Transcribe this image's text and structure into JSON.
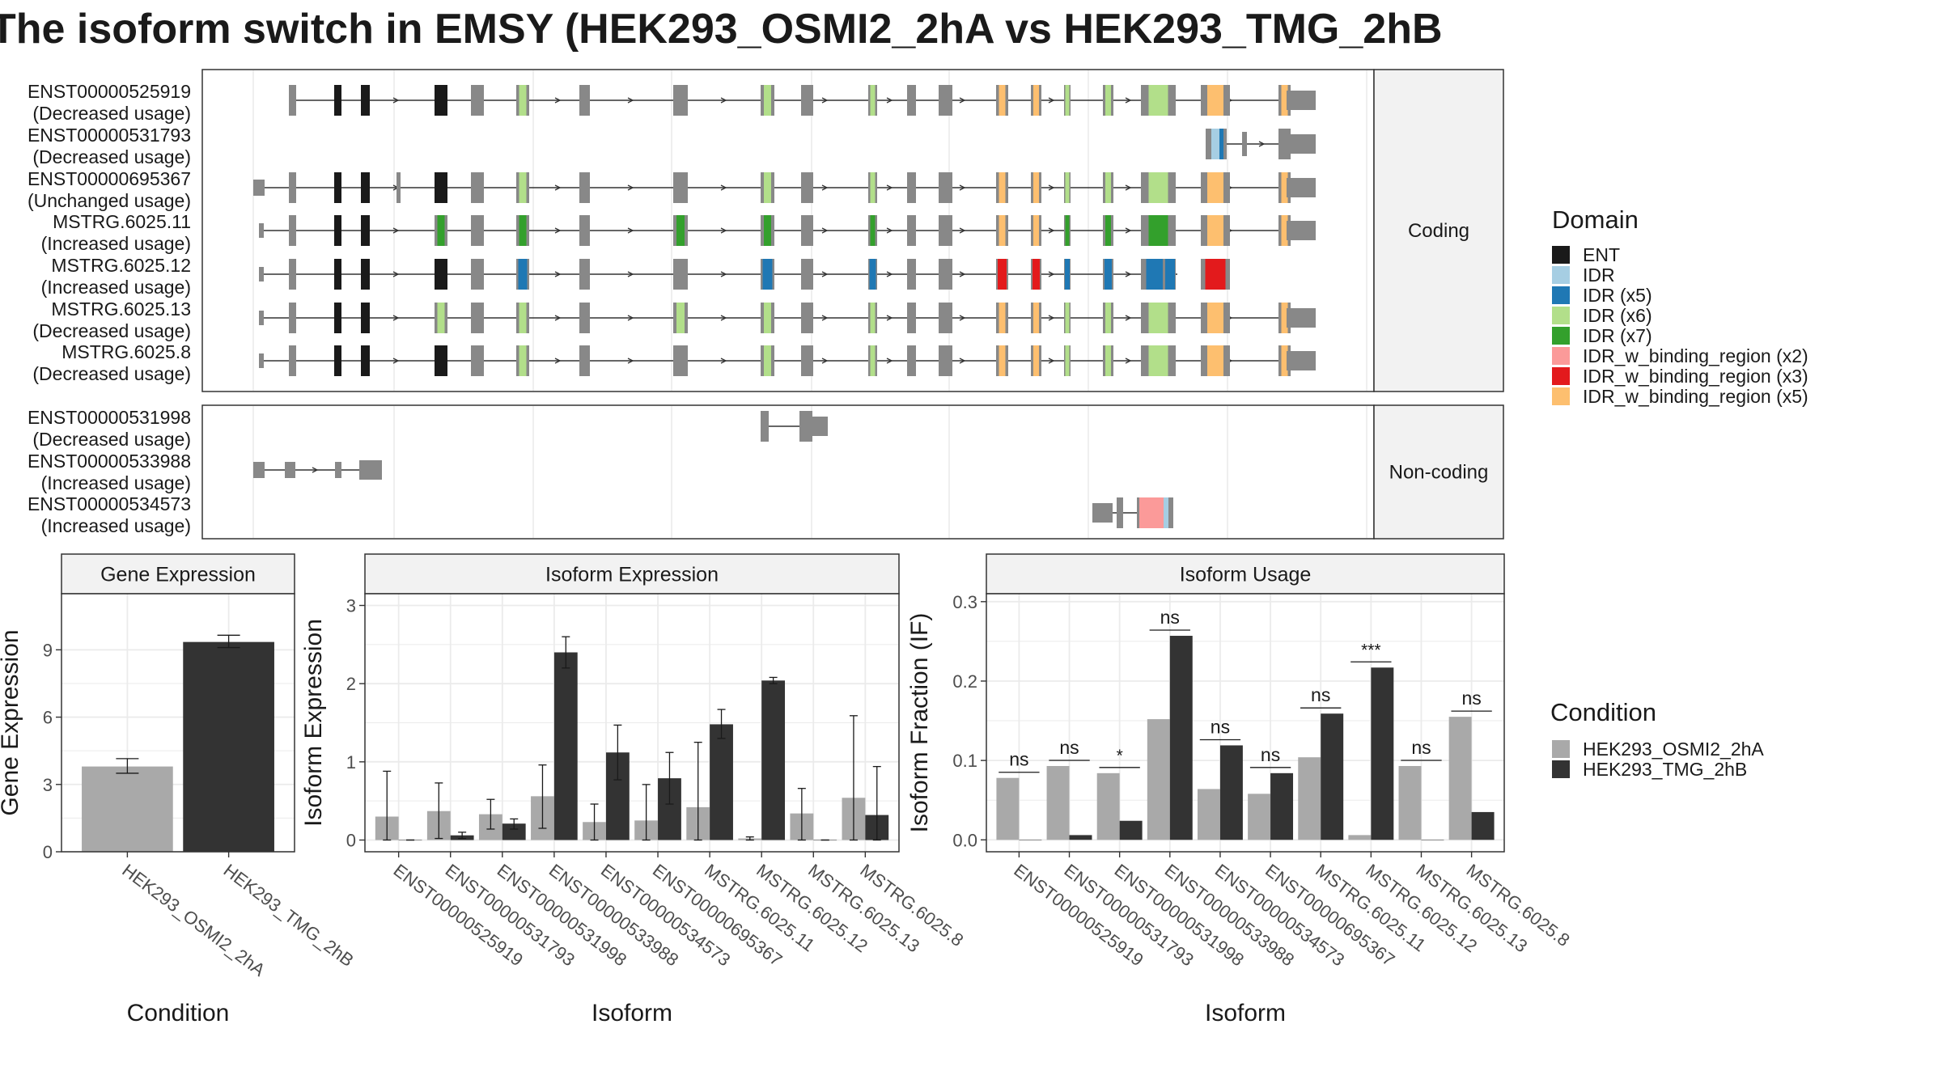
{
  "title": "The isoform switch in EMSY (HEK293_OSMI2_2hA vs HEK293_TMG_2hB",
  "legend_domain": {
    "title": "Domain",
    "items": [
      {
        "name": "ENT",
        "color": "#1a1a1a"
      },
      {
        "name": "IDR",
        "color": "#a6cee3"
      },
      {
        "name": "IDR (x5)",
        "color": "#1f78b4"
      },
      {
        "name": "IDR (x6)",
        "color": "#b2df8a"
      },
      {
        "name": "IDR (x7)",
        "color": "#33a02c"
      },
      {
        "name": "IDR_w_binding_region (x2)",
        "color": "#fb9a99"
      },
      {
        "name": "IDR_w_binding_region (x3)",
        "color": "#e31a1c"
      },
      {
        "name": "IDR_w_binding_region (x5)",
        "color": "#fdbf6f"
      }
    ]
  },
  "legend_condition": {
    "title": "Condition",
    "items": [
      {
        "name": "HEK293_OSMI2_2hA",
        "color": "#a9a9a9"
      },
      {
        "name": "HEK293_TMG_2hB",
        "color": "#333333"
      }
    ]
  },
  "structure": {
    "coding_label": "Coding",
    "noncoding_label": "Non-coding",
    "coding": [
      {
        "id": "ENST00000525919",
        "usage": "(Decreased usage)"
      },
      {
        "id": "ENST00000531793",
        "usage": "(Decreased usage)"
      },
      {
        "id": "ENST00000695367",
        "usage": "(Unchanged usage)"
      },
      {
        "id": "MSTRG.6025.11",
        "usage": "(Increased usage)"
      },
      {
        "id": "MSTRG.6025.12",
        "usage": "(Increased usage)"
      },
      {
        "id": "MSTRG.6025.13",
        "usage": "(Decreased usage)"
      },
      {
        "id": "MSTRG.6025.8",
        "usage": "(Decreased usage)"
      }
    ],
    "noncoding": [
      {
        "id": "ENST00000531998",
        "usage": "(Decreased usage)"
      },
      {
        "id": "ENST00000533988",
        "usage": "(Increased usage)"
      },
      {
        "id": "ENST00000534573",
        "usage": "(Increased usage)"
      }
    ]
  },
  "chart_data": [
    {
      "type": "bar",
      "title": "Gene Expression",
      "xlabel": "Condition",
      "ylabel": "Gene Expression",
      "categories": [
        "HEK293_OSMI2_2hA",
        "HEK293_TMG_2hB"
      ],
      "values": [
        3.8,
        9.35
      ],
      "error_low": [
        3.5,
        9.1
      ],
      "error_high": [
        4.15,
        9.65
      ],
      "ylim": [
        0,
        11.5
      ],
      "yticks": [
        0,
        3,
        6,
        9
      ]
    },
    {
      "type": "bar",
      "title": "Isoform Expression",
      "xlabel": "Isoform",
      "ylabel": "Isoform Expression",
      "categories": [
        "ENST00000525919",
        "ENST00000531793",
        "ENST00000531998",
        "ENST00000533988",
        "ENST00000534573",
        "ENST00000695367",
        "MSTRG.6025.11",
        "MSTRG.6025.12",
        "MSTRG.6025.13",
        "MSTRG.6025.8"
      ],
      "series": [
        {
          "name": "HEK293_OSMI2_2hA",
          "values": [
            0.3,
            0.37,
            0.33,
            0.56,
            0.23,
            0.25,
            0.42,
            0.02,
            0.34,
            0.54
          ],
          "error_low": [
            0.0,
            0.02,
            0.14,
            0.15,
            0.0,
            0.0,
            0.0,
            0.0,
            0.0,
            0.0
          ],
          "error_high": [
            0.88,
            0.73,
            0.52,
            0.96,
            0.46,
            0.71,
            1.25,
            0.04,
            0.66,
            1.59
          ]
        },
        {
          "name": "HEK293_TMG_2hB",
          "values": [
            0.0,
            0.06,
            0.21,
            2.4,
            1.12,
            0.79,
            1.48,
            2.04,
            0.0,
            0.32
          ],
          "error_low": [
            0.0,
            0.02,
            0.14,
            2.2,
            0.77,
            0.46,
            1.3,
            2.0,
            0.0,
            0.0
          ],
          "error_high": [
            0.0,
            0.1,
            0.27,
            2.6,
            1.47,
            1.12,
            1.67,
            2.08,
            0.0,
            0.94
          ]
        }
      ],
      "ylim": [
        -0.15,
        3.15
      ],
      "yticks": [
        0,
        1,
        2,
        3
      ]
    },
    {
      "type": "bar",
      "title": "Isoform Usage",
      "xlabel": "Isoform",
      "ylabel": "Isoform Fraction (IF)",
      "categories": [
        "ENST00000525919",
        "ENST00000531793",
        "ENST00000531998",
        "ENST00000533988",
        "ENST00000534573",
        "ENST00000695367",
        "MSTRG.6025.11",
        "MSTRG.6025.12",
        "MSTRG.6025.13",
        "MSTRG.6025.8"
      ],
      "series": [
        {
          "name": "HEK293_OSMI2_2hA",
          "values": [
            0.078,
            0.093,
            0.084,
            0.152,
            0.064,
            0.058,
            0.104,
            0.006,
            0.093,
            0.155
          ]
        },
        {
          "name": "HEK293_TMG_2hB",
          "values": [
            0.0,
            0.006,
            0.024,
            0.257,
            0.119,
            0.084,
            0.159,
            0.217,
            0.0,
            0.035
          ]
        }
      ],
      "significance": [
        "ns",
        "ns",
        "*",
        "ns",
        "ns",
        "ns",
        "ns",
        "***",
        "ns",
        "ns"
      ],
      "ylim": [
        -0.015,
        0.31
      ],
      "yticks": [
        0.0,
        0.1,
        0.2,
        0.3
      ],
      "ytick_labels": [
        "0.0",
        "0.1",
        "0.2",
        "0.3"
      ]
    }
  ]
}
